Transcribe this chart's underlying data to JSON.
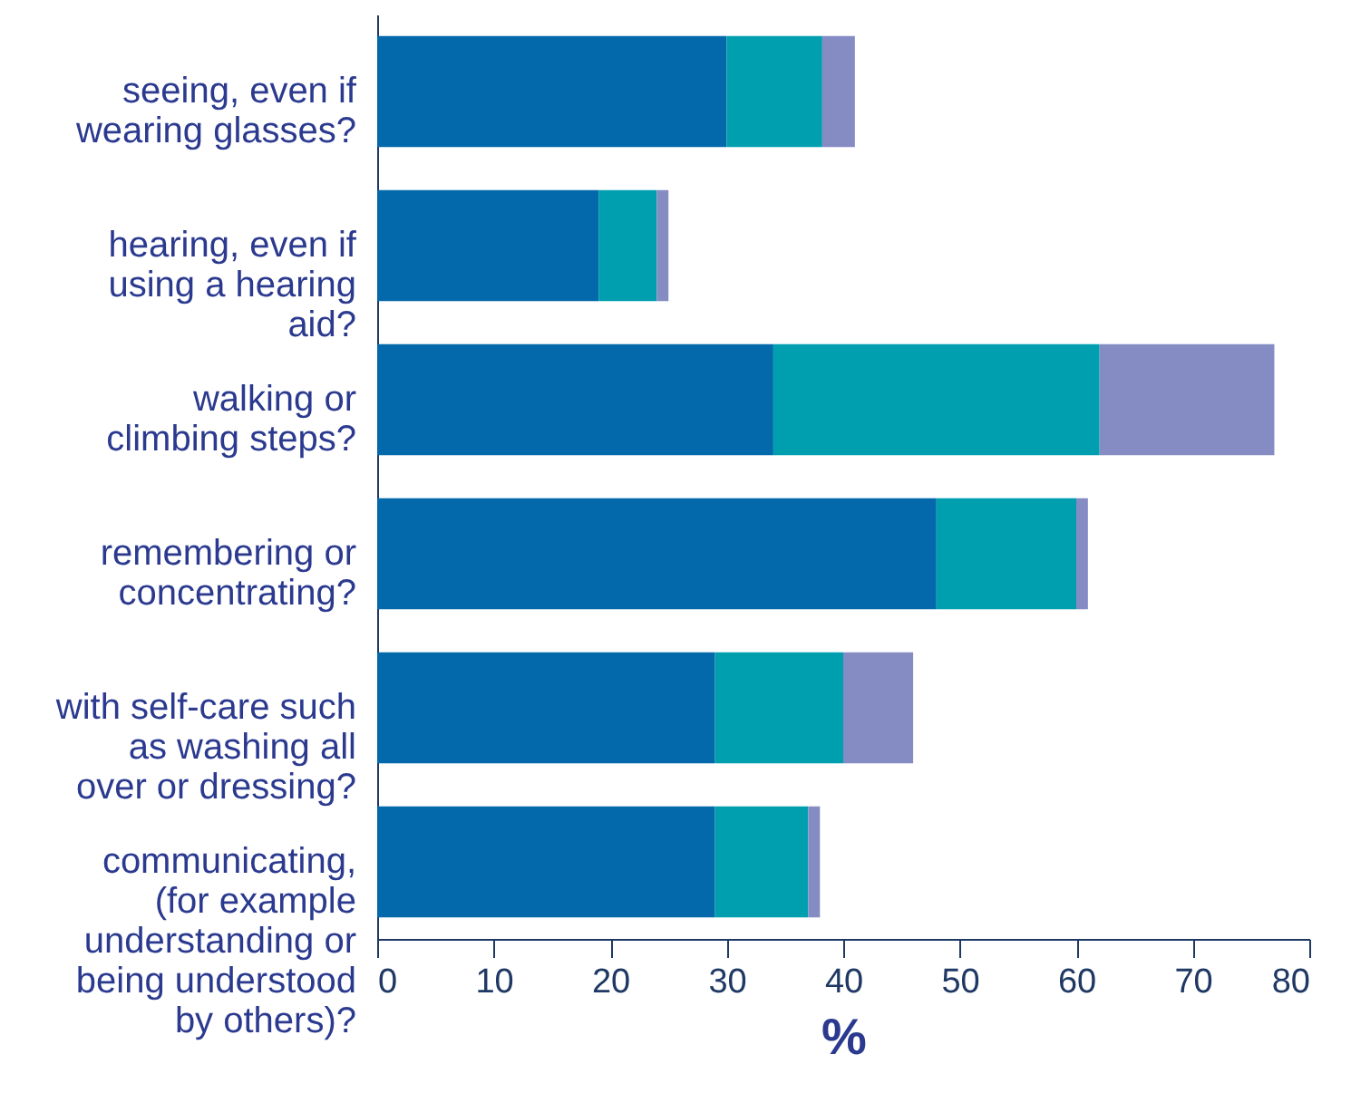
{
  "chart_data": {
    "type": "bar",
    "orientation": "horizontal",
    "stacked": true,
    "xlabel": "%",
    "categories": [
      "seeing, even if wearing glasses?",
      "hearing, even if using a hearing aid?",
      "walking or climbing steps?",
      "remembering or concentrating?",
      "with self-care such as washing all over or dressing?",
      "communicating, (for example understanding or being understood by others)?"
    ],
    "series": [
      {
        "color": "#0369aa",
        "values": [
          30,
          19,
          34,
          48,
          29,
          29
        ]
      },
      {
        "color": "#009faf",
        "values": [
          8.2,
          5,
          28,
          12,
          11,
          8
        ]
      },
      {
        "color": "#858cc4",
        "values": [
          2.8,
          1,
          15,
          1,
          6,
          1
        ]
      }
    ],
    "xlim": [
      0,
      80
    ],
    "xticks": [
      0,
      10,
      20,
      30,
      40,
      50,
      60,
      70,
      80
    ],
    "grid": false
  }
}
